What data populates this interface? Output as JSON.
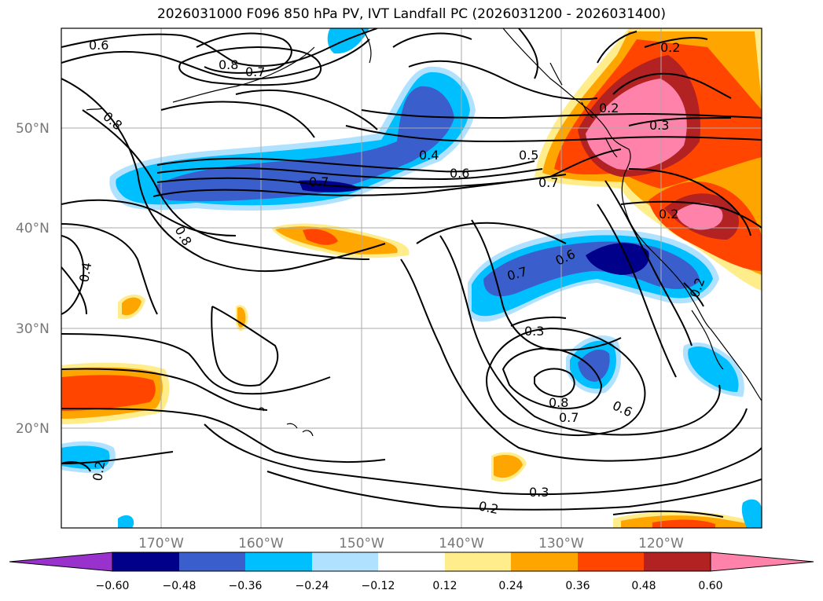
{
  "title": "2026031000 F096 850 hPa PV, IVT Landfall PC (2026031200 - 2026031400)",
  "lat_labels": [
    "50°N",
    "40°N",
    "30°N",
    "20°N"
  ],
  "lon_labels": [
    "170°W",
    "160°W",
    "150°W",
    "140°W",
    "130°W",
    "120°W"
  ],
  "contour_labels": [
    "0.6",
    "0.8",
    "0.7",
    "0.8",
    "0.8",
    "0.4",
    "0.6",
    "0.7",
    "0.5",
    "0.7",
    "0.2",
    "0.3",
    "0.2",
    "0.2",
    "0.6",
    "0.7",
    "0.3",
    "0.6",
    "0.8",
    "0.7",
    "0.3",
    "0.2",
    "0.4",
    "0.2",
    "0.2"
  ],
  "colorbar": {
    "ticks": [
      "−0.60",
      "−0.48",
      "−0.36",
      "−0.24",
      "−0.12",
      "0.12",
      "0.24",
      "0.36",
      "0.48",
      "0.60"
    ],
    "colors": [
      "#9932cc",
      "#00008b",
      "#3a5fcd",
      "#00bfff",
      "#b0e2ff",
      "#ffffff",
      "#ffec8b",
      "#ffa500",
      "#ff4500",
      "#b22222",
      "#ff82ab"
    ]
  }
}
